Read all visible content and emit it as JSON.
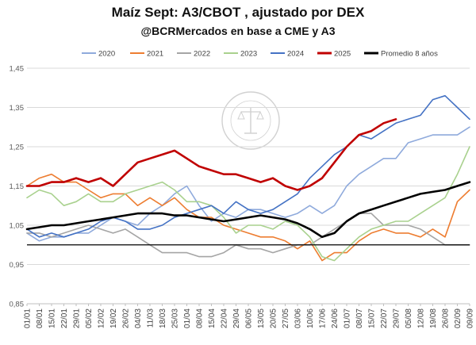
{
  "chart_data": {
    "type": "line",
    "title": "Maíz Sept: A3/CBOT , ajustado por DEX",
    "subtitle": "@BCRMercados en base a CME y A3",
    "ylim": [
      0.85,
      1.45
    ],
    "y_ticks": [
      "0,85",
      "0,95",
      "1,05",
      "1,15",
      "1,25",
      "1,35",
      "1,45"
    ],
    "y_tick_values": [
      0.85,
      0.95,
      1.05,
      1.15,
      1.25,
      1.35,
      1.45
    ],
    "reference_line": 1.0,
    "grid": "horizontal",
    "legend_position": "top",
    "x_labels": [
      "01/01",
      "08/01",
      "15/01",
      "22/01",
      "29/01",
      "05/02",
      "12/02",
      "19/02",
      "26/02",
      "04/03",
      "11/03",
      "18/03",
      "25/03",
      "01/04",
      "08/04",
      "15/04",
      "22/04",
      "29/04",
      "06/05",
      "13/05",
      "20/05",
      "27/05",
      "03/06",
      "10/06",
      "17/06",
      "24/06",
      "01/07",
      "08/07",
      "15/07",
      "22/07",
      "29/07",
      "05/08",
      "12/08",
      "19/08",
      "26/08",
      "02/09",
      "09/09"
    ],
    "series": [
      {
        "name": "2020",
        "color": "#8faadc",
        "width": 1.6,
        "values": [
          1.03,
          1.01,
          1.02,
          1.02,
          1.03,
          1.03,
          1.05,
          1.07,
          1.06,
          1.05,
          1.08,
          1.1,
          1.13,
          1.15,
          1.1,
          1.06,
          1.08,
          1.07,
          1.09,
          1.09,
          1.08,
          1.07,
          1.08,
          1.1,
          1.08,
          1.1,
          1.15,
          1.18,
          1.2,
          1.22,
          1.22,
          1.26,
          1.27,
          1.28,
          1.28,
          1.28,
          1.3
        ]
      },
      {
        "name": "2021",
        "color": "#ed7d31",
        "width": 1.6,
        "values": [
          1.15,
          1.17,
          1.18,
          1.16,
          1.16,
          1.14,
          1.12,
          1.13,
          1.13,
          1.1,
          1.12,
          1.1,
          1.12,
          1.09,
          1.07,
          1.07,
          1.05,
          1.04,
          1.03,
          1.02,
          1.02,
          1.01,
          0.99,
          1.01,
          0.96,
          0.98,
          0.98,
          1.01,
          1.03,
          1.04,
          1.03,
          1.03,
          1.02,
          1.04,
          1.02,
          1.11,
          1.14
        ]
      },
      {
        "name": "2022",
        "color": "#a5a5a5",
        "width": 1.6,
        "values": [
          1.03,
          1.03,
          1.02,
          1.03,
          1.04,
          1.05,
          1.04,
          1.03,
          1.04,
          1.02,
          1.0,
          0.98,
          0.98,
          0.98,
          0.97,
          0.97,
          0.98,
          1.0,
          0.99,
          0.99,
          0.98,
          0.99,
          1.0,
          1.0,
          1.02,
          1.04,
          1.06,
          1.08,
          1.08,
          1.05,
          1.05,
          1.05,
          1.04,
          1.02,
          1.0,
          1.0,
          1.0
        ]
      },
      {
        "name": "2023",
        "color": "#a9d18e",
        "width": 1.6,
        "values": [
          1.12,
          1.14,
          1.13,
          1.1,
          1.11,
          1.13,
          1.11,
          1.11,
          1.13,
          1.14,
          1.15,
          1.16,
          1.14,
          1.11,
          1.11,
          1.1,
          1.07,
          1.03,
          1.05,
          1.05,
          1.04,
          1.06,
          1.05,
          1.02,
          0.97,
          0.96,
          0.99,
          1.02,
          1.04,
          1.05,
          1.06,
          1.06,
          1.08,
          1.1,
          1.12,
          1.18,
          1.25
        ]
      },
      {
        "name": "2024",
        "color": "#4472c4",
        "width": 1.6,
        "values": [
          1.04,
          1.02,
          1.03,
          1.02,
          1.03,
          1.04,
          1.06,
          1.07,
          1.06,
          1.04,
          1.04,
          1.05,
          1.07,
          1.08,
          1.09,
          1.1,
          1.08,
          1.11,
          1.09,
          1.08,
          1.09,
          1.11,
          1.13,
          1.17,
          1.2,
          1.23,
          1.25,
          1.28,
          1.27,
          1.29,
          1.31,
          1.32,
          1.33,
          1.37,
          1.38,
          1.35,
          1.32
        ]
      },
      {
        "name": "2025",
        "color": "#c00000",
        "width": 2.6,
        "values": [
          1.15,
          1.15,
          1.16,
          1.16,
          1.17,
          1.16,
          1.17,
          1.15,
          1.18,
          1.21,
          1.22,
          1.23,
          1.24,
          1.22,
          1.2,
          1.19,
          1.18,
          1.18,
          1.17,
          1.16,
          1.17,
          1.15,
          1.14,
          1.15,
          1.17,
          1.21,
          1.25,
          1.28,
          1.29,
          1.31,
          1.32,
          null,
          null,
          null,
          null,
          null,
          null
        ]
      },
      {
        "name": "Promedio 8 años",
        "color": "#000000",
        "width": 2.6,
        "values": [
          1.04,
          1.045,
          1.05,
          1.05,
          1.055,
          1.06,
          1.065,
          1.07,
          1.075,
          1.08,
          1.08,
          1.08,
          1.075,
          1.075,
          1.07,
          1.065,
          1.06,
          1.065,
          1.07,
          1.075,
          1.07,
          1.065,
          1.055,
          1.04,
          1.02,
          1.03,
          1.06,
          1.08,
          1.09,
          1.1,
          1.11,
          1.12,
          1.13,
          1.135,
          1.14,
          1.15,
          1.16
        ]
      }
    ]
  }
}
